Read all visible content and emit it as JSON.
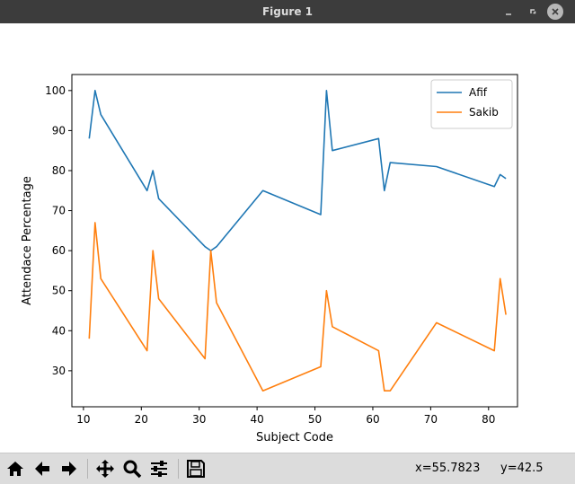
{
  "window": {
    "title": "Figure 1"
  },
  "toolbar": {
    "items": [
      "home-icon",
      "back-arrow-icon",
      "forward-arrow-icon",
      "pan-icon",
      "zoom-icon",
      "configure-subplots-icon",
      "save-icon"
    ],
    "x_readout": "x=55.7823",
    "y_readout": "y=42.5"
  },
  "chart_data": {
    "type": "line",
    "title": "",
    "xlabel": "Subject Code",
    "ylabel": "Attendace Percentage",
    "xlim": [
      8,
      85
    ],
    "ylim": [
      21,
      104
    ],
    "xticks": [
      10,
      20,
      30,
      40,
      50,
      60,
      70,
      80
    ],
    "yticks": [
      30,
      40,
      50,
      60,
      70,
      80,
      90,
      100
    ],
    "x": [
      11,
      12,
      13,
      21,
      22,
      23,
      31,
      32,
      33,
      41,
      51,
      52,
      53,
      61,
      62,
      63,
      71,
      81,
      82,
      83
    ],
    "series": [
      {
        "name": "Afif",
        "color": "#1f77b4",
        "values": [
          88,
          100,
          94,
          75,
          80,
          73,
          61,
          60,
          61,
          75,
          69,
          100,
          85,
          88,
          75,
          82,
          81,
          76,
          79,
          78
        ]
      },
      {
        "name": "Sakib",
        "color": "#ff7f0e",
        "values": [
          38,
          67,
          53,
          35,
          60,
          48,
          33,
          60,
          47,
          25,
          31,
          50,
          41,
          35,
          25,
          25,
          42,
          35,
          53,
          44
        ]
      }
    ],
    "legend": "top-right",
    "grid": false
  }
}
